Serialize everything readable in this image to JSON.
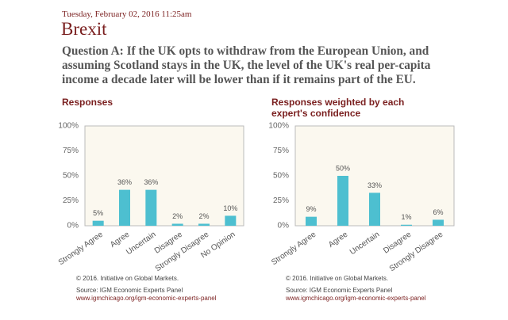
{
  "date": "Tuesday, February 02, 2016 11:25am",
  "title": "Brexit",
  "question": "Question A: If the UK opts to withdraw from the European Union, and assuming Scotland stays in the UK, the level of the UK's real per-capita income a decade later will be lower than if it remains part of the EU.",
  "chart_data": [
    {
      "type": "bar",
      "title": "Responses",
      "categories": [
        "Strongly Agree",
        "Agree",
        "Uncertain",
        "Disagree",
        "Strongly Disagree",
        "No Opinion"
      ],
      "values": [
        5,
        36,
        36,
        2,
        2,
        10
      ],
      "value_labels": [
        "5%",
        "36%",
        "36%",
        "2%",
        "2%",
        "10%"
      ],
      "color": "#4dbfd0",
      "ylim": [
        0,
        100
      ],
      "yticks": [
        {
          "value": 0,
          "label": "0%"
        },
        {
          "value": 25,
          "label": "25%"
        },
        {
          "value": 50,
          "label": "50%"
        },
        {
          "value": 75,
          "label": "75%"
        },
        {
          "value": 100,
          "label": "100%"
        }
      ],
      "copyright": "© 2016. Initiative on Global Markets.",
      "source": "Source: IGM Economic Experts Panel",
      "url": "www.igmchicago.org/igm-economic-experts-panel"
    },
    {
      "type": "bar",
      "title": "Responses weighted by each expert's confidence",
      "categories": [
        "Strongly Agree",
        "Agree",
        "Uncertain",
        "Disagree",
        "Strongly Disagree"
      ],
      "values": [
        9,
        50,
        33,
        1,
        6
      ],
      "value_labels": [
        "9%",
        "50%",
        "33%",
        "1%",
        "6%"
      ],
      "color": "#4dbfd0",
      "ylim": [
        0,
        100
      ],
      "yticks": [
        {
          "value": 0,
          "label": "0%"
        },
        {
          "value": 25,
          "label": "25%"
        },
        {
          "value": 50,
          "label": "50%"
        },
        {
          "value": 75,
          "label": "75%"
        },
        {
          "value": 100,
          "label": "100%"
        }
      ],
      "copyright": "© 2016. Initiative on Global Markets.",
      "source": "Source: IGM Economic Experts Panel",
      "url": "www.igmchicago.org/igm-economic-experts-panel"
    }
  ]
}
